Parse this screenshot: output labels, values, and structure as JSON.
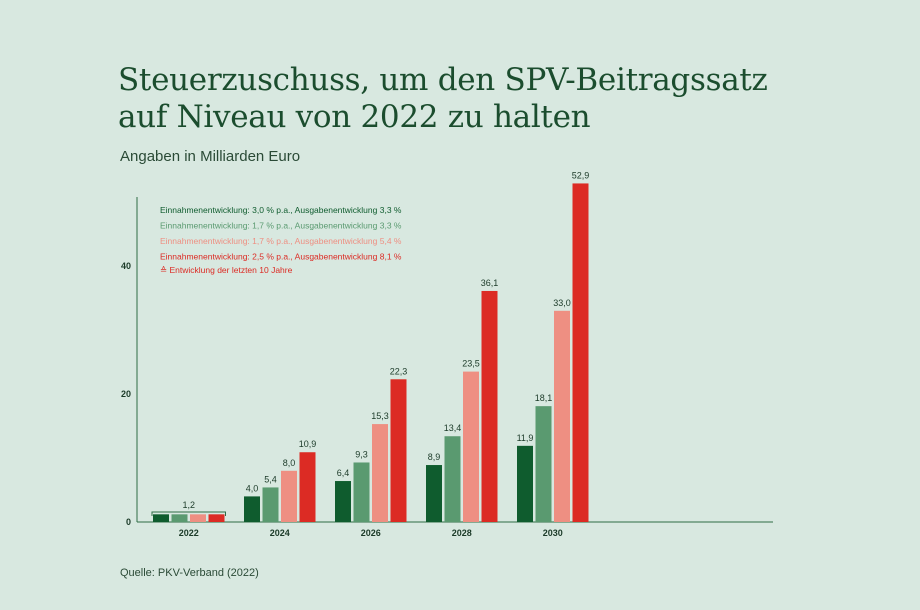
{
  "title": "Steuerzuschuss, um den SPV-Beitragssatz auf Niveau von 2022 zu halten",
  "subtitle": "Angaben in Milliarden Euro",
  "source": "Quelle: PKV-Verband (2022)",
  "colors": {
    "background": "#d8e8e0",
    "axis": "#2e6b45",
    "text": "#1b4d2e"
  },
  "chart_data": {
    "type": "bar",
    "categories": [
      "2022",
      "2024",
      "2026",
      "2028",
      "2030"
    ],
    "ylim": [
      0,
      50
    ],
    "yticks": [
      0,
      20,
      40
    ],
    "grid": false,
    "legend_position": "top-left",
    "series": [
      {
        "name": "Einnahmenentwicklung: 3,0 % p.a., Ausgabenentwicklung 3,3 %",
        "color": "#0f5c2e",
        "values": [
          1.2,
          4.0,
          6.4,
          8.9,
          11.9
        ],
        "labels": [
          "",
          "4,0",
          "6,4",
          "8,9",
          "11,9"
        ]
      },
      {
        "name": "Einnahmenentwicklung: 1,7 % p.a., Ausgabenentwicklung 3,3 %",
        "color": "#5a9a70",
        "values": [
          1.2,
          5.4,
          9.3,
          13.4,
          18.1
        ],
        "labels": [
          "",
          "5,4",
          "9,3",
          "13,4",
          "18,1"
        ]
      },
      {
        "name": "Einnahmenentwicklung: 1,7 % p.a., Ausgabenentwicklung 5,4 %",
        "color": "#ee8f82",
        "values": [
          1.2,
          8.0,
          15.3,
          23.5,
          33.0
        ],
        "labels": [
          "",
          "8,0",
          "15,3",
          "23,5",
          "33,0"
        ]
      },
      {
        "name": "Einnahmenentwicklung: 2,5 % p.a., Ausgabenentwicklung 8,1 %",
        "name_line2": "≙ Entwicklung der letzten 10 Jahre",
        "color": "#dc2b24",
        "values": [
          1.2,
          10.9,
          22.3,
          36.1,
          52.9
        ],
        "labels": [
          "",
          "10,9",
          "22,3",
          "36,1",
          "52,9"
        ]
      }
    ],
    "group_labels": [
      "1,2",
      "",
      "",
      "",
      ""
    ]
  }
}
